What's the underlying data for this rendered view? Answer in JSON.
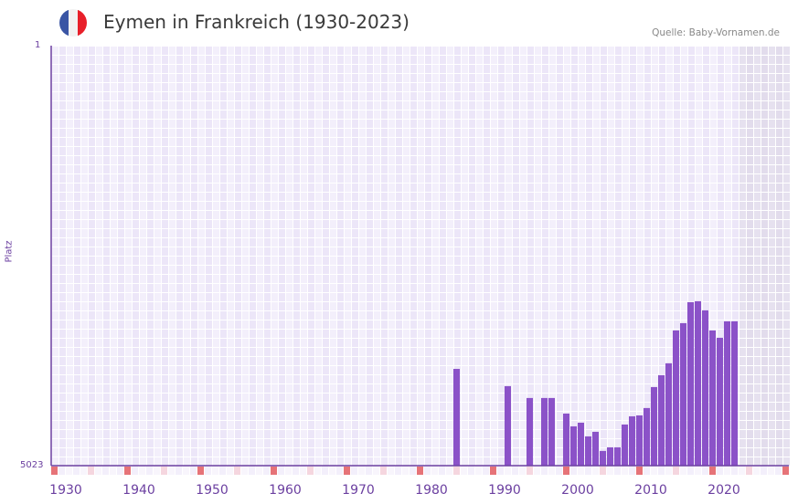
{
  "header": {
    "title": "Eymen in Frankreich (1930-2023)",
    "source": "Quelle: Baby-Vornamen.de",
    "flag_colors": [
      "#3a55a4",
      "#f2f2f2",
      "#e8202a"
    ]
  },
  "colors": {
    "bar": "#8b52c8",
    "axis": "#6b3fa0",
    "marker_red": "#e67378",
    "marker_pink": "#f5d6df"
  },
  "chart_data": {
    "type": "bar",
    "title": "Eymen in Frankreich (1930-2023)",
    "xlabel": "",
    "ylabel": "Platz",
    "ylim": [
      5023,
      1
    ],
    "ytick_labels": [
      "1",
      "5023"
    ],
    "xtick_labels": [
      "1930",
      "1940",
      "1950",
      "1960",
      "1970",
      "1980",
      "1990",
      "2000",
      "2010",
      "2020"
    ],
    "xrange": [
      1928,
      2028
    ],
    "x": [
      1983,
      1990,
      1993,
      1995,
      1996,
      1998,
      1999,
      2000,
      2001,
      2002,
      2003,
      2004,
      2005,
      2006,
      2007,
      2008,
      2009,
      2010,
      2011,
      2012,
      2013,
      2014,
      2015,
      2016,
      2017,
      2018,
      2019,
      2020,
      2021
    ],
    "values": [
      3866,
      4072,
      4214,
      4214,
      4214,
      4400,
      4553,
      4509,
      4673,
      4618,
      4847,
      4804,
      4804,
      4531,
      4433,
      4422,
      4334,
      4083,
      3941,
      3799,
      3406,
      3319,
      3068,
      3057,
      3166,
      3406,
      3494,
      3297,
      3297
    ]
  }
}
